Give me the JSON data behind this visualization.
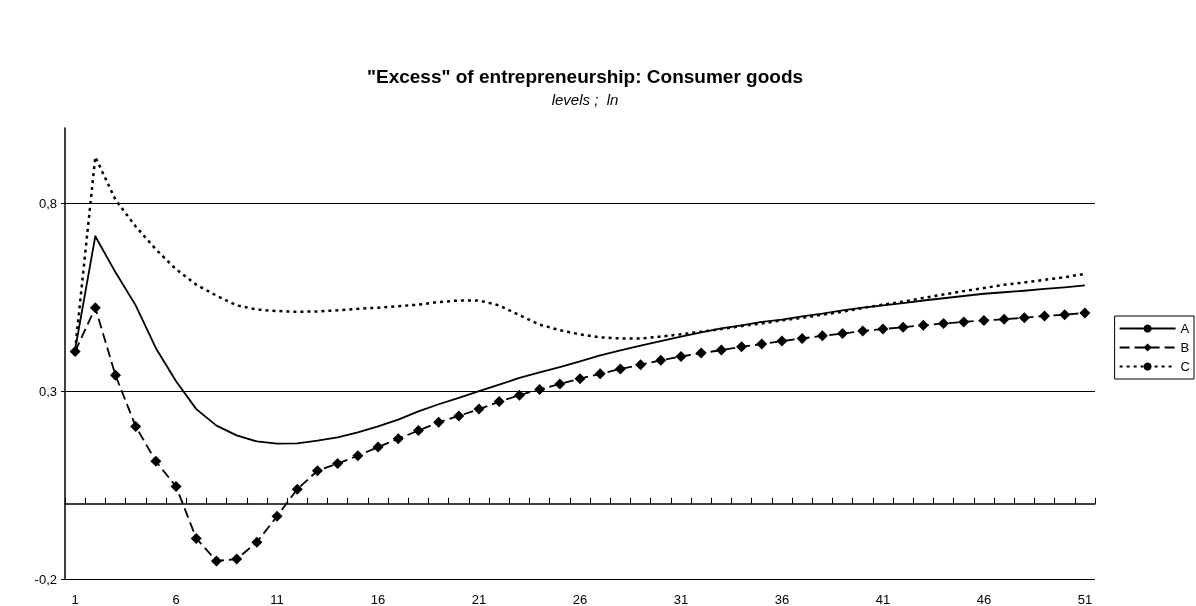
{
  "chart_data": {
    "type": "line",
    "title": "\"Excess\" of entrepreneurship: Consumer goods",
    "subtitle": "levels ;  ln",
    "categories": [
      "1",
      null,
      null,
      null,
      null,
      "6",
      null,
      null,
      null,
      null,
      "11",
      null,
      null,
      null,
      null,
      "16",
      null,
      null,
      null,
      null,
      "21",
      null,
      null,
      null,
      null,
      "26",
      null,
      null,
      null,
      null,
      "31",
      null,
      null,
      null,
      null,
      "36",
      null,
      null,
      null,
      null,
      "41",
      null,
      null,
      null,
      null,
      "46",
      null,
      null,
      null,
      null,
      "51"
    ],
    "series": [
      {
        "name": "A",
        "color": "#000000",
        "marker": "none",
        "line_style": "solid",
        "values": [
          0.41,
          0.712,
          0.616,
          0.528,
          0.414,
          0.326,
          0.252,
          0.208,
          0.182,
          0.166,
          0.16,
          0.161,
          0.168,
          0.177,
          0.19,
          0.206,
          0.224,
          0.246,
          0.265,
          0.282,
          0.3,
          0.317,
          0.335,
          0.35,
          0.364,
          0.379,
          0.395,
          0.408,
          0.421,
          0.433,
          0.445,
          0.456,
          0.467,
          0.475,
          0.484,
          0.49,
          0.499,
          0.506,
          0.515,
          0.522,
          0.528,
          0.534,
          0.541,
          0.547,
          0.553,
          0.559,
          0.563,
          0.567,
          0.572,
          0.576,
          0.581
        ]
      },
      {
        "name": "B",
        "color": "#000000",
        "marker": "diamond",
        "line_style": "dashed",
        "values": [
          0.405,
          0.522,
          0.342,
          0.206,
          0.113,
          0.046,
          -0.092,
          -0.152,
          -0.147,
          -0.102,
          -0.033,
          0.039,
          0.088,
          0.107,
          0.128,
          0.151,
          0.173,
          0.195,
          0.217,
          0.234,
          0.252,
          0.272,
          0.289,
          0.304,
          0.319,
          0.333,
          0.346,
          0.359,
          0.37,
          0.382,
          0.392,
          0.401,
          0.409,
          0.418,
          0.425,
          0.433,
          0.44,
          0.447,
          0.453,
          0.46,
          0.465,
          0.47,
          0.475,
          0.48,
          0.484,
          0.488,
          0.491,
          0.495,
          0.5,
          0.503,
          0.508
        ]
      },
      {
        "name": "C",
        "color": "#000000",
        "marker": "none",
        "line_style": "dotted",
        "values": [
          0.409,
          0.923,
          0.809,
          0.738,
          0.677,
          0.624,
          0.583,
          0.554,
          0.528,
          0.517,
          0.513,
          0.511,
          0.512,
          0.515,
          0.519,
          0.522,
          0.526,
          0.53,
          0.537,
          0.541,
          0.541,
          0.528,
          0.502,
          0.477,
          0.462,
          0.451,
          0.443,
          0.44,
          0.44,
          0.445,
          0.451,
          0.458,
          0.465,
          0.473,
          0.48,
          0.488,
          0.495,
          0.503,
          0.511,
          0.521,
          0.53,
          0.538,
          0.548,
          0.557,
          0.566,
          0.574,
          0.583,
          0.589,
          0.596,
          0.603,
          0.612
        ]
      }
    ],
    "ylim": [
      -0.2,
      1.0
    ],
    "yticks": [
      {
        "value": -0.2,
        "label": "-0,2"
      },
      {
        "value": 0.3,
        "label": "0,3"
      },
      {
        "value": 0.8,
        "label": "0,8"
      }
    ],
    "grid": "y",
    "legend": "right"
  }
}
